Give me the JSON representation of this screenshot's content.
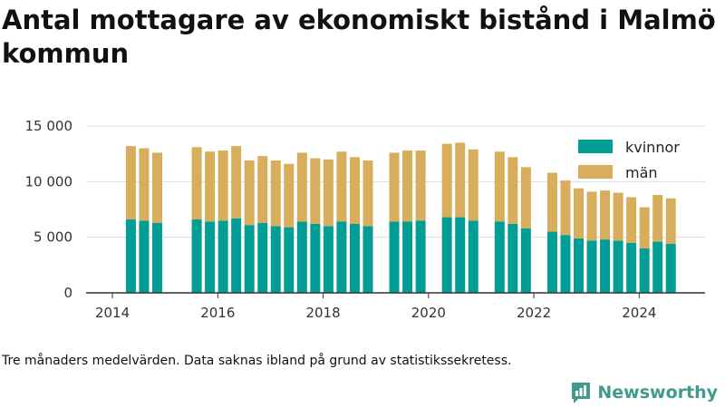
{
  "title": "Antal mottagare av ekonomiskt bistånd i Malmö kommun",
  "footnote": "Tre månaders medelvärden. Data saknas ibland på grund av statistikssekretess.",
  "brand": {
    "name": "Newsworthy"
  },
  "colors": {
    "kvinnor": "#009e94",
    "man": "#d8ad5b",
    "grid": "#dddddd",
    "axis": "#333333",
    "brand": "#3f9c8a"
  },
  "chart_data": {
    "type": "bar",
    "stacked": true,
    "title": "Antal mottagare av ekonomiskt bistånd i Malmö kommun",
    "xlabel": "",
    "ylabel": "",
    "x_ticks": [
      "2014",
      "2016",
      "2018",
      "2020",
      "2022",
      "2024"
    ],
    "y_ticks": [
      "0",
      "5 000",
      "10 000",
      "15 000"
    ],
    "ylim": [
      0,
      15000
    ],
    "xlim": [
      2013.5,
      2025.25
    ],
    "grid": true,
    "legend_position": "top-right",
    "x": [
      2014.35,
      2014.6,
      2014.85,
      2015.6,
      2015.85,
      2016.1,
      2016.35,
      2016.6,
      2016.85,
      2017.1,
      2017.35,
      2017.6,
      2017.85,
      2018.1,
      2018.35,
      2018.6,
      2018.85,
      2019.35,
      2019.6,
      2019.85,
      2020.35,
      2020.6,
      2020.85,
      2021.35,
      2021.6,
      2021.85,
      2022.35,
      2022.6,
      2022.85,
      2023.1,
      2023.35,
      2023.6,
      2023.85,
      2024.1,
      2024.35,
      2024.6
    ],
    "series": [
      {
        "name": "kvinnor",
        "values": [
          6600,
          6500,
          6300,
          6600,
          6400,
          6500,
          6700,
          6100,
          6300,
          6000,
          5900,
          6400,
          6200,
          6000,
          6400,
          6200,
          6000,
          6400,
          6400,
          6500,
          6800,
          6800,
          6500,
          6400,
          6200,
          5800,
          5500,
          5200,
          4900,
          4700,
          4800,
          4700,
          4500,
          4000,
          4600,
          4400
        ]
      },
      {
        "name": "män",
        "values": [
          6600,
          6500,
          6300,
          6500,
          6300,
          6300,
          6500,
          5800,
          6000,
          5900,
          5700,
          6200,
          5900,
          6000,
          6300,
          6000,
          5900,
          6200,
          6400,
          6300,
          6600,
          6700,
          6400,
          6300,
          6000,
          5500,
          5300,
          4900,
          4500,
          4400,
          4400,
          4300,
          4100,
          3700,
          4200,
          4100
        ]
      }
    ]
  }
}
